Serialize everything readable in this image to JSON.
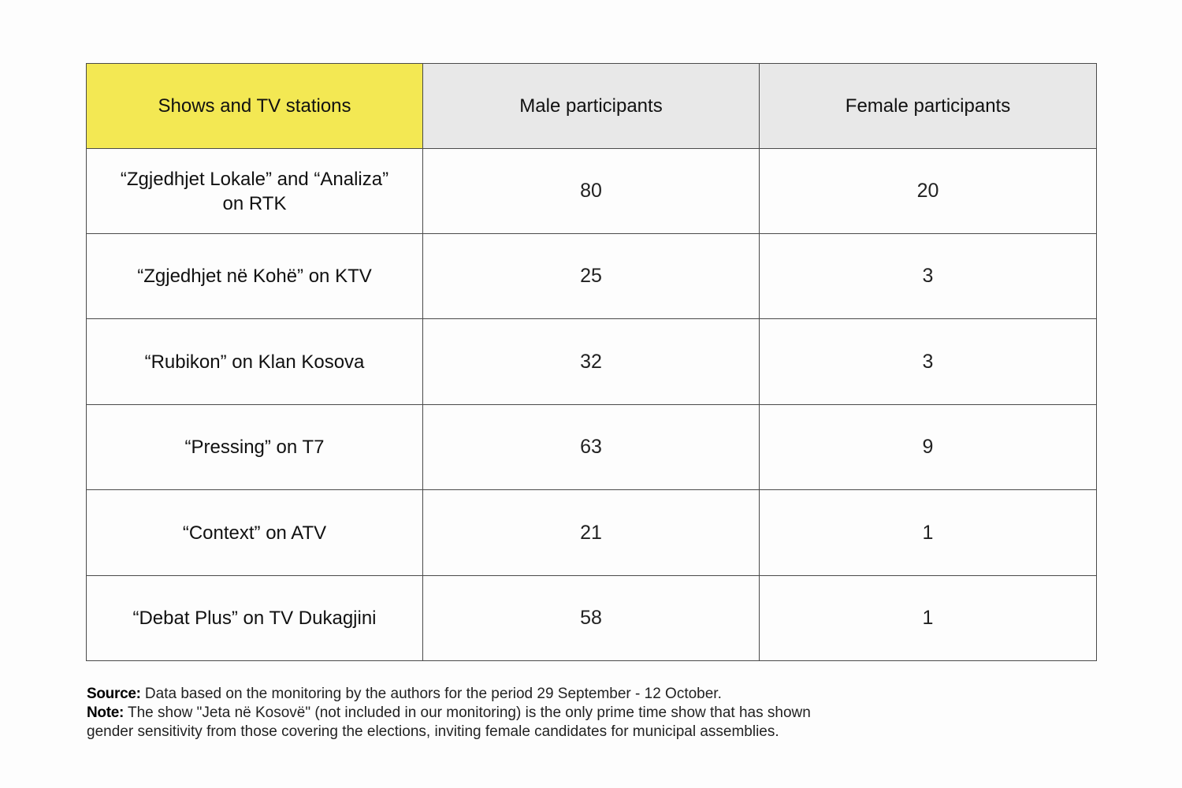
{
  "chart_data": {
    "type": "table",
    "columns": [
      "Shows and TV stations",
      "Male participants",
      "Female participants"
    ],
    "rows": [
      {
        "show": "“Zgjedhjet Lokale” and “Analiza” on RTK",
        "male": 80,
        "female": 20
      },
      {
        "show": "“Zgjedhjet në Kohë” on KTV",
        "male": 25,
        "female": 3
      },
      {
        "show": "“Rubikon” on Klan Kosova",
        "male": 32,
        "female": 3
      },
      {
        "show": "“Pressing” on T7",
        "male": 63,
        "female": 9
      },
      {
        "show": "“Context” on ATV",
        "male": 21,
        "female": 1
      },
      {
        "show": "“Debat Plus” on TV Dukagjini",
        "male": 58,
        "female": 1
      }
    ],
    "header_highlight_color": "#f3e853",
    "header_color": "#e8e8e8"
  },
  "footnote": {
    "source_label": "Source:",
    "source_text": " Data based on the monitoring by the authors for the period 29 September - 12 October.",
    "note_label": "Note:",
    "note_text": " The show \"Jeta në Kosovë\" (not included in our monitoring) is the only prime time show that has shown gender sensitivity from those covering the elections, inviting female candidates for municipal assemblies."
  }
}
